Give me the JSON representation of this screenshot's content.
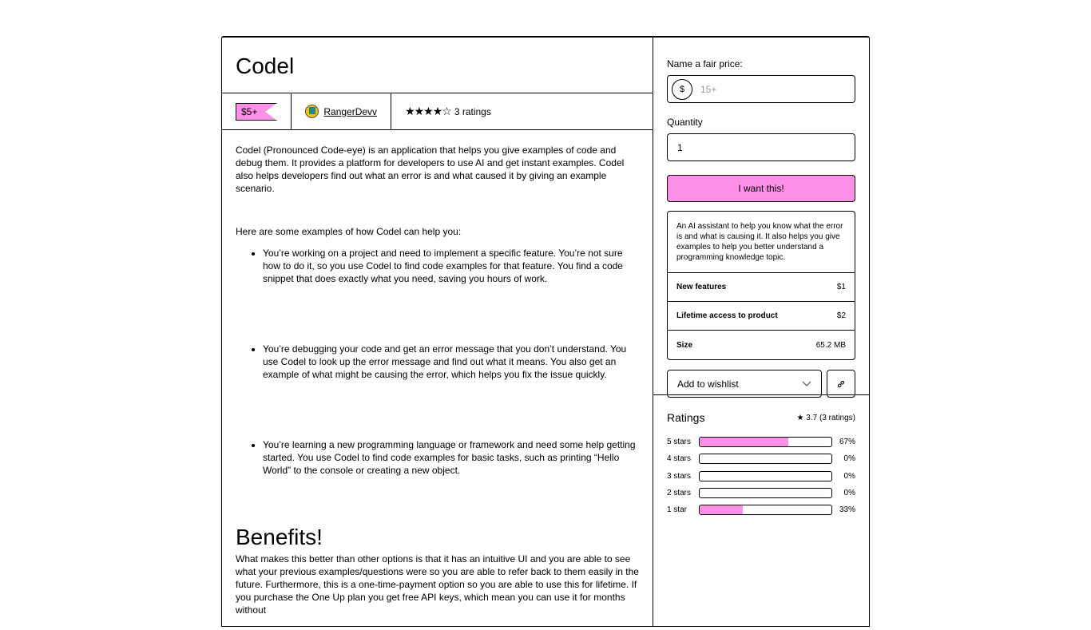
{
  "product": {
    "title": "Codel",
    "price": "$5+",
    "author": "RangerDevv",
    "rating_stars": 4,
    "ratings_label": "3 ratings"
  },
  "description": {
    "intro": "Codel (Pronounced Code-eye) is an application that helps you give examples of code and debug them. It provides a platform for developers to use AI and get instant examples. Codel also helps developers find out what an error is and what caused it by giving an example scenario.",
    "examples_intro": "Here are some examples of how Codel can help you:",
    "examples": [
      "You’re working on a project and need to implement a specific feature. You’re not sure how to do it, so you use Codel to find code examples for that feature. You find a code snippet that does exactly what you need, saving you hours of work.",
      "You’re debugging your code and get an error message that you don’t understand. You use Codel to look up the error message and find out what it means. You also get an example of what might be causing the error, which helps you fix the issue quickly.",
      "You’re learning a new programming language or framework and need some help getting started. You use Codel to find code examples for basic tasks, such as printing “Hello World” to the console or creating a new object."
    ],
    "benefits_heading": "Benefits!",
    "benefits_text": "What makes this better than other options is that it has an intuitive UI and you are able to see what your previous examples/questions were so you are able to refer back to them easily in the future. Furthermore, this is a one-time-payment option so you are able to use this for lifetime. If you purchase the One Up plan you get free API keys, which mean you can use it for months without"
  },
  "purchase": {
    "price_label": "Name a fair price:",
    "currency": "$",
    "price_placeholder": "15+",
    "quantity_label": "Quantity",
    "quantity_value": "1",
    "buy_label": "I want this!",
    "summary": "An AI assistant to help you know what the error is and what is causing it. It also helps you give examples to help you better understand a programming knowledge topic.",
    "details": [
      {
        "label": "New features",
        "value": "$1"
      },
      {
        "label": "Lifetime access to product",
        "value": "$2"
      },
      {
        "label": "Size",
        "value": "65.2 MB"
      }
    ],
    "wishlist_label": "Add to wishlist"
  },
  "ratings": {
    "title": "Ratings",
    "summary": "3.7 (3 ratings)",
    "rows": [
      {
        "label": "5 stars",
        "percent": 67,
        "text": "67%"
      },
      {
        "label": "4 stars",
        "percent": 0,
        "text": "0%"
      },
      {
        "label": "3 stars",
        "percent": 0,
        "text": "0%"
      },
      {
        "label": "2 stars",
        "percent": 0,
        "text": "0%"
      },
      {
        "label": "1 star",
        "percent": 33,
        "text": "33%"
      }
    ]
  },
  "colors": {
    "accent": "#ff90e8"
  }
}
